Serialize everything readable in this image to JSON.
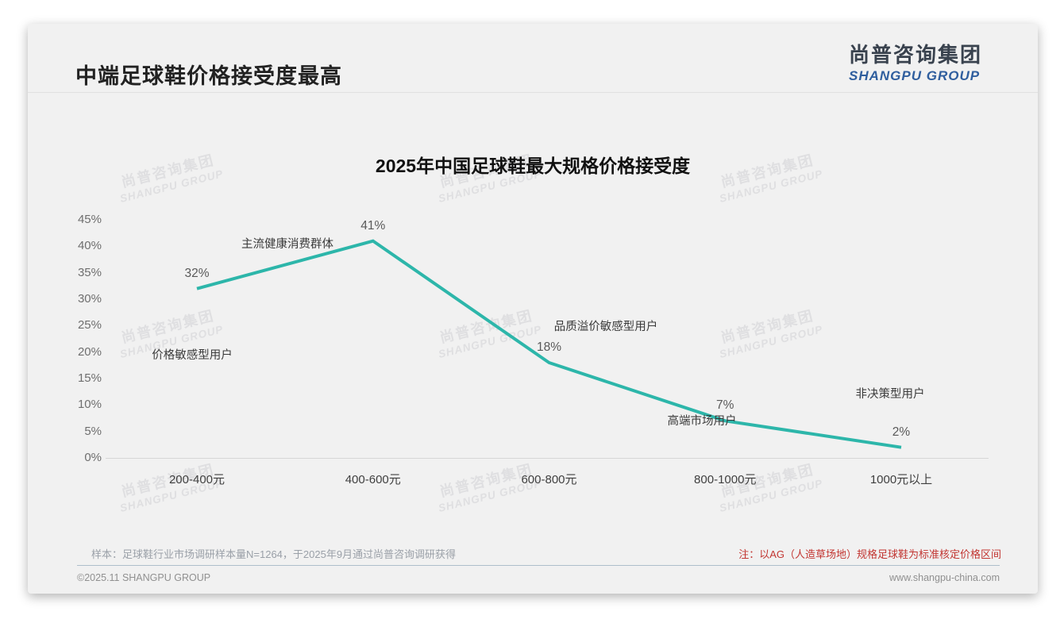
{
  "header": {
    "title": "中端足球鞋价格接受度最高",
    "logo_cn": "尚普咨询集团",
    "logo_en": "SHANGPU GROUP"
  },
  "watermark": {
    "line1": "尚普咨询集团",
    "line2": "SHANGPU GROUP"
  },
  "chart_data": {
    "type": "line",
    "title": "2025年中国足球鞋最大规格价格接受度",
    "categories": [
      "200-400元",
      "400-600元",
      "600-800元",
      "800-1000元",
      "1000元以上"
    ],
    "values": [
      32,
      41,
      18,
      7,
      2
    ],
    "value_labels": [
      "32%",
      "41%",
      "18%",
      "7%",
      "2%"
    ],
    "annotations": [
      {
        "text": "价格敏感型用户",
        "anchor": "200-400元"
      },
      {
        "text": "主流健康消费群体",
        "anchor": "400-600元"
      },
      {
        "text": "品质溢价敏感型用户",
        "anchor": "600-800元"
      },
      {
        "text": "高端市场用户",
        "anchor": "800-1000元"
      },
      {
        "text": "非决策型用户",
        "anchor": "1000元以上"
      }
    ],
    "xlabel": "",
    "ylabel": "",
    "ylim": [
      0,
      45
    ],
    "ytick_step": 5,
    "ytick_labels": [
      "0%",
      "5%",
      "10%",
      "15%",
      "20%",
      "25%",
      "30%",
      "35%",
      "40%",
      "45%"
    ],
    "grid": false,
    "legend": null,
    "line_color": "#2db6aa"
  },
  "notes": {
    "sample": "样本：足球鞋行业市场调研样本量N=1264，于2025年9月通过尚普咨询调研获得",
    "method": "注：以AG（人造草场地）规格足球鞋为标准核定价格区间"
  },
  "footer": {
    "copyright": "©2025.11 SHANGPU GROUP",
    "website": "www.shangpu-china.com"
  }
}
